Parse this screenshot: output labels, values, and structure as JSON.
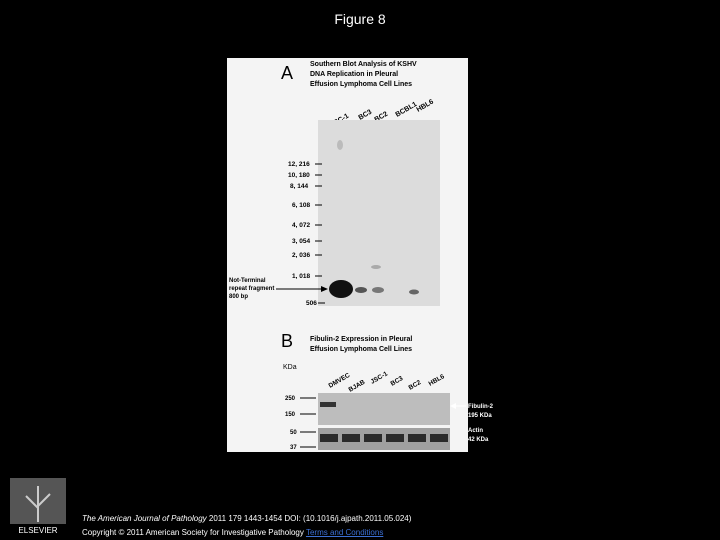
{
  "header": {
    "title": "Figure 8"
  },
  "panel_a": {
    "letter": "A",
    "title_lines": [
      "Southern Blot Analysis of KSHV",
      "DNA Replication in Pleural",
      "Effusion Lymphoma Cell Lines"
    ],
    "lanes": [
      "JSC-1",
      "BC3",
      "BC2",
      "BCBL1",
      "HBL6"
    ],
    "markers": [
      "12, 216",
      "10, 180",
      "8, 144",
      "6, 108",
      "4, 072",
      "3, 054",
      "2, 036",
      "1, 018",
      "506"
    ],
    "annotation_lines": [
      "Not-Terminal",
      "repeat fragment",
      "800 bp"
    ]
  },
  "panel_b": {
    "letter": "B",
    "title_lines": [
      "Fibulin-2 Expression in Pleural",
      "Effusion Lymphoma Cell Lines"
    ],
    "unit": "KDa",
    "lanes": [
      "DMVEC",
      "BJAB",
      "JSC-1",
      "BC3",
      "BC2",
      "HBL6"
    ],
    "markers": [
      "250",
      "150",
      "50",
      "37"
    ],
    "right_labels": [
      [
        "Fibulin-2",
        "195 KDa"
      ],
      [
        "Actin",
        "42 KDa"
      ]
    ]
  },
  "footer": {
    "journal": "The American Journal of Pathology",
    "citation": " 2011 179 1443-1454 DOI: (10.1016/j.ajpath.2011.05.024)",
    "copyright": "Copyright © 2011 American Society for Investigative Pathology ",
    "link": "Terms and Conditions"
  },
  "logo": {
    "text": "ELSEVIER"
  }
}
